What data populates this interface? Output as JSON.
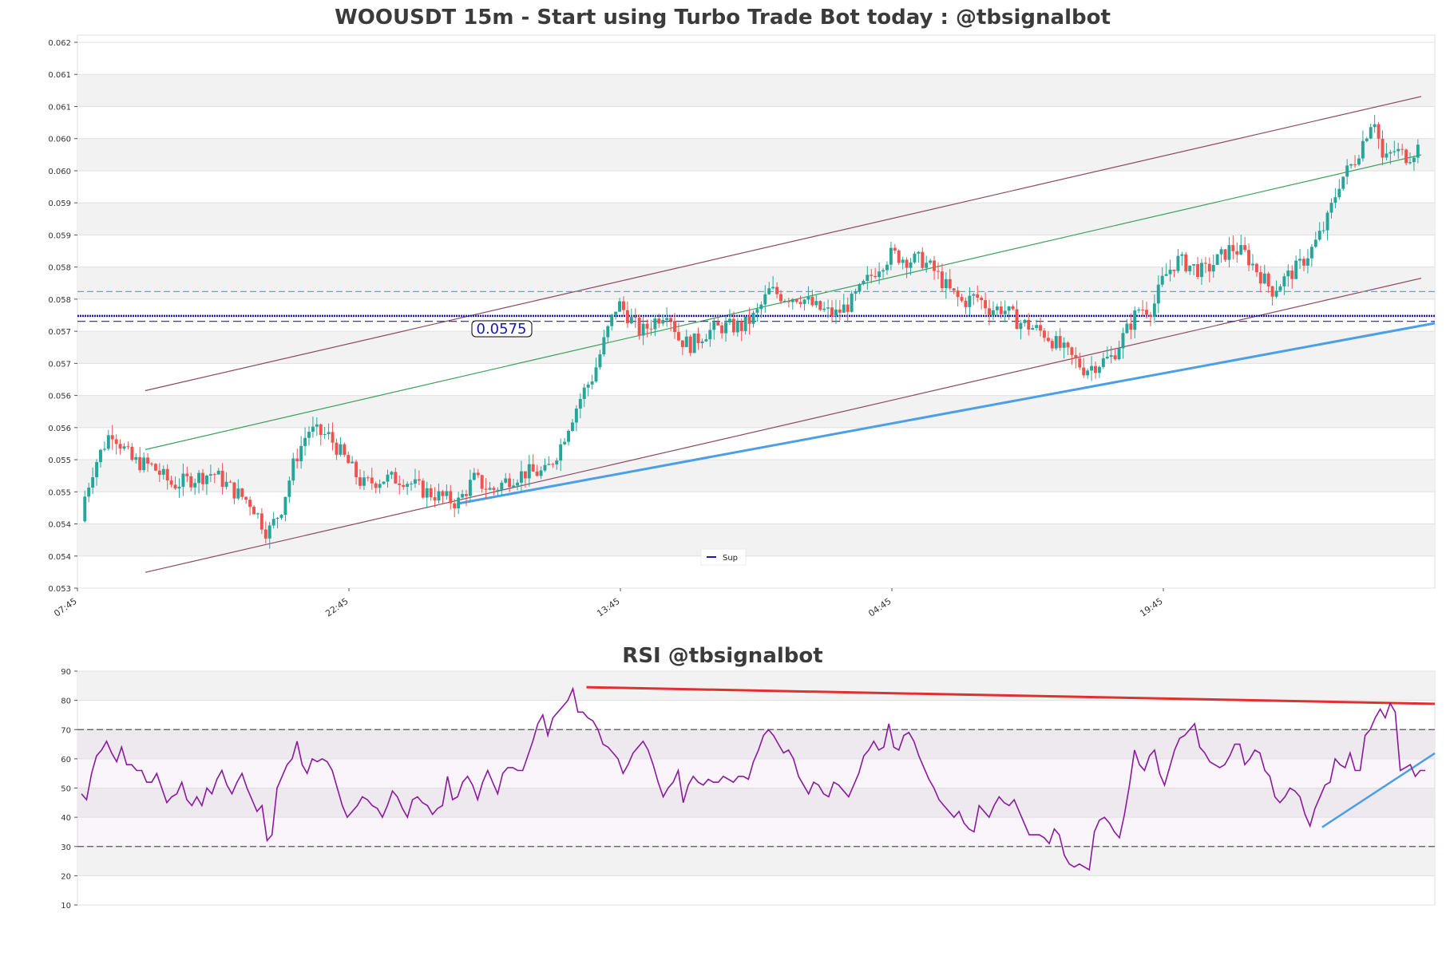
{
  "chart_data": [
    {
      "type": "candlestick",
      "title": "WOOUSDT 15m - Start using Turbo Trade Bot today : @tbsignalbot",
      "xlabel": "",
      "ylabel": "",
      "ylim": [
        0.053,
        0.0621
      ],
      "y_ticks": [
        "0.062",
        "0.061",
        "0.061",
        "0.060",
        "0.060",
        "0.059",
        "0.059",
        "0.058",
        "0.058",
        "0.057",
        "0.057",
        "0.056",
        "0.056",
        "0.055",
        "0.055",
        "0.054",
        "0.054",
        "0.053"
      ],
      "x_ticks": [
        "07:45",
        "22:45",
        "13:45",
        "04:45",
        "19:45"
      ],
      "grid": true,
      "legend": {
        "placement": "lower-center",
        "entries": [
          "Sup"
        ]
      },
      "price_label": "0.0575",
      "levels": {
        "support": 0.05748,
        "support_dashed": 0.05739,
        "resistance_dashed": 0.05788
      },
      "channel": {
        "upper": [
          [
            0,
            0.05625
          ],
          [
            1,
            0.06109
          ]
        ],
        "lower": [
          [
            0,
            0.05326
          ],
          [
            1,
            0.0581
          ]
        ],
        "middle": [
          [
            0,
            0.05528
          ],
          [
            1,
            0.06013
          ]
        ]
      },
      "trendline_support": [
        [
          0.28,
          0.05439
        ],
        [
          1.0,
          0.05736
        ]
      ],
      "candles_hint": "approx. 340 candles from 0.0541 rising to a peak near 0.0613 then closing ~0.0603",
      "close_path": [
        [
          0.0,
          0.0541
        ],
        [
          0.012,
          0.055
        ],
        [
          0.025,
          0.0556
        ],
        [
          0.04,
          0.0551
        ],
        [
          0.055,
          0.055
        ],
        [
          0.07,
          0.0547
        ],
        [
          0.085,
          0.0548
        ],
        [
          0.1,
          0.0549
        ],
        [
          0.115,
          0.0546
        ],
        [
          0.128,
          0.0544
        ],
        [
          0.14,
          0.0539
        ],
        [
          0.15,
          0.0543
        ],
        [
          0.16,
          0.0551
        ],
        [
          0.17,
          0.0556
        ],
        [
          0.185,
          0.0555
        ],
        [
          0.198,
          0.0551
        ],
        [
          0.21,
          0.0547
        ],
        [
          0.225,
          0.0548
        ],
        [
          0.24,
          0.0548
        ],
        [
          0.255,
          0.0546
        ],
        [
          0.268,
          0.0545
        ],
        [
          0.28,
          0.0544
        ],
        [
          0.292,
          0.0548
        ],
        [
          0.305,
          0.0546
        ],
        [
          0.318,
          0.0548
        ],
        [
          0.33,
          0.0549
        ],
        [
          0.345,
          0.0549
        ],
        [
          0.355,
          0.0553
        ],
        [
          0.362,
          0.0557
        ],
        [
          0.372,
          0.0562
        ],
        [
          0.38,
          0.0565
        ],
        [
          0.39,
          0.0572
        ],
        [
          0.398,
          0.0577
        ],
        [
          0.405,
          0.0575
        ],
        [
          0.415,
          0.0572
        ],
        [
          0.425,
          0.0574
        ],
        [
          0.435,
          0.0576
        ],
        [
          0.443,
          0.0571
        ],
        [
          0.452,
          0.057
        ],
        [
          0.462,
          0.0572
        ],
        [
          0.475,
          0.0573
        ],
        [
          0.49,
          0.0573
        ],
        [
          0.5,
          0.0575
        ],
        [
          0.51,
          0.0579
        ],
        [
          0.52,
          0.0578
        ],
        [
          0.532,
          0.0578
        ],
        [
          0.545,
          0.0576
        ],
        [
          0.558,
          0.0575
        ],
        [
          0.57,
          0.0577
        ],
        [
          0.58,
          0.058
        ],
        [
          0.59,
          0.0583
        ],
        [
          0.6,
          0.0585
        ],
        [
          0.612,
          0.0584
        ],
        [
          0.622,
          0.0584
        ],
        [
          0.632,
          0.0582
        ],
        [
          0.642,
          0.0579
        ],
        [
          0.652,
          0.0577
        ],
        [
          0.662,
          0.0578
        ],
        [
          0.672,
          0.0576
        ],
        [
          0.682,
          0.0576
        ],
        [
          0.692,
          0.0574
        ],
        [
          0.702,
          0.0573
        ],
        [
          0.712,
          0.0572
        ],
        [
          0.722,
          0.057
        ],
        [
          0.732,
          0.0568
        ],
        [
          0.742,
          0.0566
        ],
        [
          0.752,
          0.0567
        ],
        [
          0.762,
          0.0568
        ],
        [
          0.772,
          0.0572
        ],
        [
          0.782,
          0.0576
        ],
        [
          0.792,
          0.0576
        ],
        [
          0.8,
          0.0581
        ],
        [
          0.81,
          0.0584
        ],
        [
          0.82,
          0.0583
        ],
        [
          0.83,
          0.0582
        ],
        [
          0.84,
          0.0584
        ],
        [
          0.85,
          0.0586
        ],
        [
          0.86,
          0.0585
        ],
        [
          0.87,
          0.0582
        ],
        [
          0.88,
          0.0579
        ],
        [
          0.89,
          0.0581
        ],
        [
          0.9,
          0.0583
        ],
        [
          0.91,
          0.0586
        ],
        [
          0.92,
          0.059
        ],
        [
          0.93,
          0.0597
        ],
        [
          0.94,
          0.06
        ],
        [
          0.948,
          0.0604
        ],
        [
          0.955,
          0.0608
        ],
        [
          0.962,
          0.06
        ],
        [
          0.97,
          0.0602
        ],
        [
          0.98,
          0.0601
        ],
        [
          0.99,
          0.0603
        ],
        [
          1.0,
          0.0603
        ]
      ]
    },
    {
      "type": "line",
      "title": "RSI @tbsignalbot",
      "xlabel": "",
      "ylabel": "",
      "ylim": [
        10,
        90
      ],
      "y_ticks": [
        "90",
        "80",
        "70",
        "60",
        "50",
        "40",
        "30",
        "20",
        "10"
      ],
      "levels": {
        "overbought": 70,
        "oversold": 30
      },
      "grid": true,
      "series": [
        {
          "values": [
            48,
            46,
            55,
            61,
            63,
            66,
            62,
            59,
            64,
            58,
            58,
            56,
            56,
            52,
            52,
            55,
            50,
            45,
            47,
            48,
            52,
            46,
            44,
            47,
            44,
            50,
            48,
            53,
            56,
            51,
            48,
            52,
            55,
            50,
            46,
            42,
            44,
            32,
            34,
            50,
            54,
            58,
            60,
            66,
            58,
            55,
            60,
            59,
            60,
            59,
            56,
            50,
            44,
            40,
            42,
            44,
            47,
            46,
            44,
            43,
            40,
            44,
            49,
            47,
            43,
            40,
            46,
            47,
            45,
            44,
            41,
            43,
            44,
            54,
            46,
            47,
            52,
            54,
            51,
            46,
            52,
            56,
            52,
            48,
            55,
            57,
            57,
            56,
            56,
            61,
            66,
            72,
            75,
            68,
            74,
            76,
            78,
            80,
            84,
            76,
            76,
            74,
            73,
            70,
            65,
            64,
            62,
            60,
            55,
            58,
            62,
            64,
            66,
            63,
            58,
            52,
            47,
            50,
            52,
            56,
            45,
            51,
            54,
            52,
            51,
            53,
            52,
            52,
            54,
            53,
            52,
            54,
            54,
            53,
            59,
            63,
            68,
            70,
            68,
            65,
            62,
            63,
            60,
            54,
            51,
            48,
            52,
            51,
            48,
            47,
            52,
            51,
            49,
            47,
            51,
            55,
            61,
            63,
            66,
            63,
            64,
            72,
            64,
            63,
            68,
            69,
            66,
            61,
            57,
            53,
            50,
            46,
            44,
            42,
            40,
            42,
            38,
            36,
            35,
            44,
            42,
            40,
            44,
            47,
            45,
            44,
            46,
            42,
            38,
            34,
            34,
            34,
            33,
            31,
            36,
            34,
            27,
            24,
            23,
            24,
            23,
            22,
            35,
            39,
            40,
            38,
            35,
            33,
            41,
            51,
            63,
            58,
            56,
            61,
            63,
            55,
            51,
            57,
            63,
            67,
            68,
            70,
            72,
            64,
            62,
            59,
            58,
            57,
            58,
            61,
            65,
            65,
            58,
            60,
            63,
            62,
            56,
            54,
            47,
            45,
            47,
            50,
            49,
            47,
            41,
            37,
            43,
            47,
            51,
            52,
            60,
            58,
            57,
            62,
            56,
            56,
            68,
            70,
            74,
            77,
            74,
            79,
            76,
            56,
            57,
            58,
            54,
            56,
            56
          ]
        }
      ],
      "trendline_resistance": [
        [
          0.375,
          84.5
        ],
        [
          1.0,
          78.8
        ]
      ],
      "trendline_support": [
        [
          0.917,
          36.6
        ],
        [
          1.0,
          61.9
        ]
      ]
    }
  ],
  "colors": {
    "up": "#26a69a",
    "down": "#ef5350",
    "channel_outer": "#8b4a5c",
    "channel_mid": "#3aa05a",
    "support_line": "#1a1aa8",
    "resistance_dashed": "#3fb6d8",
    "trend_blue": "#4a9fe8",
    "rsi_line": "#8b1a9e",
    "rsi_trend_red": "#e03030"
  },
  "icons": {
    "legend": "legend-line-icon"
  }
}
